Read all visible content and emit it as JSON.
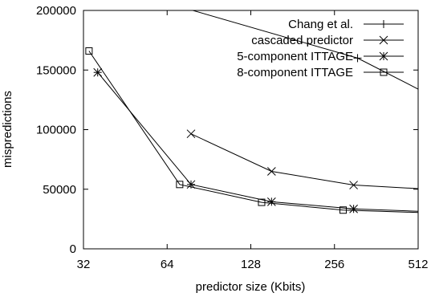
{
  "chart_data": {
    "type": "line",
    "title": "",
    "xlabel": "predictor size (Kbits)",
    "ylabel": "mispredictions",
    "x_scale": "log2",
    "xlim": [
      32,
      512
    ],
    "ylim": [
      0,
      200000
    ],
    "x_ticks": [
      32,
      64,
      128,
      256,
      512
    ],
    "x_tick_labels": [
      "32",
      "64",
      "128",
      "256",
      "512"
    ],
    "y_ticks": [
      0,
      50000,
      100000,
      150000,
      200000
    ],
    "y_tick_labels": [
      "0",
      "50000",
      "100000",
      "150000",
      "200000"
    ],
    "grid": false,
    "legend_position": "top-right",
    "series": [
      {
        "name": "Chang et al.",
        "marker": "plus",
        "x": [
          40,
          310,
          512
        ],
        "y": [
          220000,
          160000,
          134000
        ]
      },
      {
        "name": "cascaded predictor",
        "marker": "cross",
        "x": [
          78,
          152,
          300,
          512
        ],
        "y": [
          96500,
          65000,
          53500,
          50500
        ]
      },
      {
        "name": "5-component ITTAGE",
        "marker": "star",
        "x": [
          36,
          78,
          152,
          300,
          512
        ],
        "y": [
          148000,
          54000,
          39500,
          33500,
          31500
        ]
      },
      {
        "name": "8-component ITTAGE",
        "marker": "square",
        "x": [
          33.5,
          71,
          140,
          275,
          512
        ],
        "y": [
          166000,
          54000,
          39000,
          32500,
          30500
        ]
      }
    ]
  }
}
